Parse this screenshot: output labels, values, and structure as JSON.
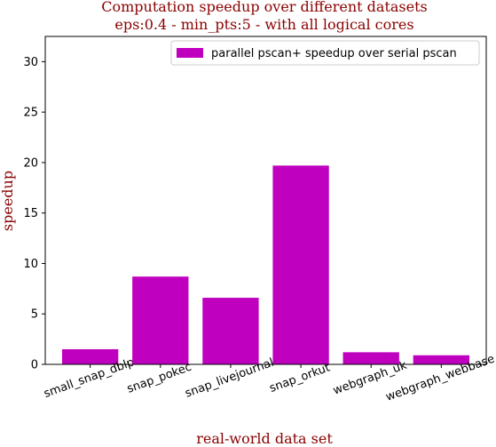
{
  "chart_data": {
    "type": "bar",
    "title": "Computation speedup over different datasets",
    "subtitle": "eps:0.4 - min_pts:5 - with all logical cores",
    "xlabel": "real-world data set",
    "ylabel": "speedup",
    "categories": [
      "small_snap_dblp",
      "snap_pokec",
      "snap_livejournal",
      "snap_orkut",
      "webgraph_uk",
      "webgraph_webbase"
    ],
    "series": [
      {
        "name": "parallel pscan+ speedup over serial pscan",
        "values": [
          1.5,
          8.7,
          6.6,
          19.7,
          1.2,
          0.9
        ],
        "color": "#bf00bf"
      }
    ],
    "ylim": [
      0,
      32.5
    ],
    "yticks": [
      0,
      5,
      10,
      15,
      20,
      25,
      30
    ],
    "grid": false,
    "legend_position": "top-right"
  }
}
